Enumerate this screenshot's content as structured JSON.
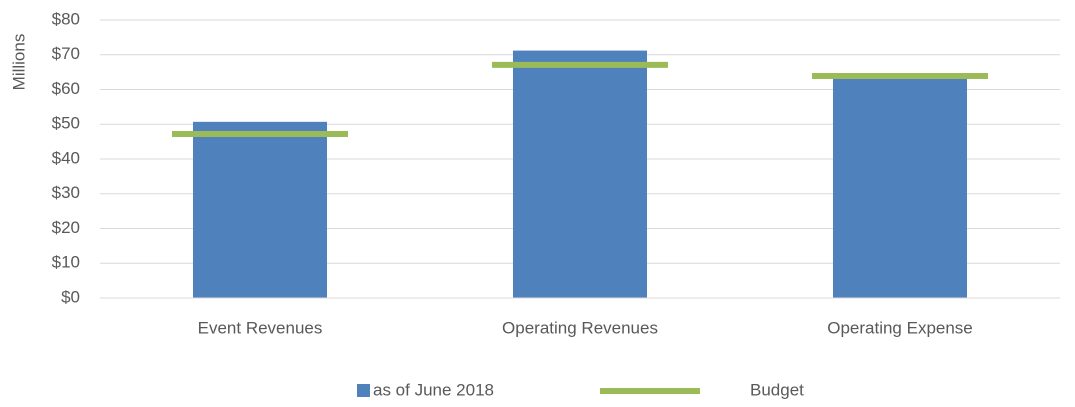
{
  "chart_data": {
    "type": "bar",
    "y_label": "Millions",
    "categories": [
      "Event Revenues",
      "Operating Revenues",
      "Operating Expense"
    ],
    "series": [
      {
        "name": "as of June 2018",
        "color": "#4f81bd",
        "style": "bar",
        "values": [
          50.7,
          71.2,
          63.2
        ]
      },
      {
        "name": "Budget",
        "color": "#9bbb59",
        "style": "dash",
        "values": [
          47.2,
          67.1,
          63.9
        ]
      }
    ],
    "ylim": [
      0,
      80
    ],
    "yticks": [
      {
        "value": 0,
        "label": "$0"
      },
      {
        "value": 10,
        "label": "$10"
      },
      {
        "value": 20,
        "label": "$20"
      },
      {
        "value": 30,
        "label": "$30"
      },
      {
        "value": 40,
        "label": "$40"
      },
      {
        "value": 50,
        "label": "$50"
      },
      {
        "value": 60,
        "label": "$60"
      },
      {
        "value": 70,
        "label": "$70"
      },
      {
        "value": 80,
        "label": "$80"
      }
    ],
    "grid": true,
    "legend": "bottom"
  }
}
